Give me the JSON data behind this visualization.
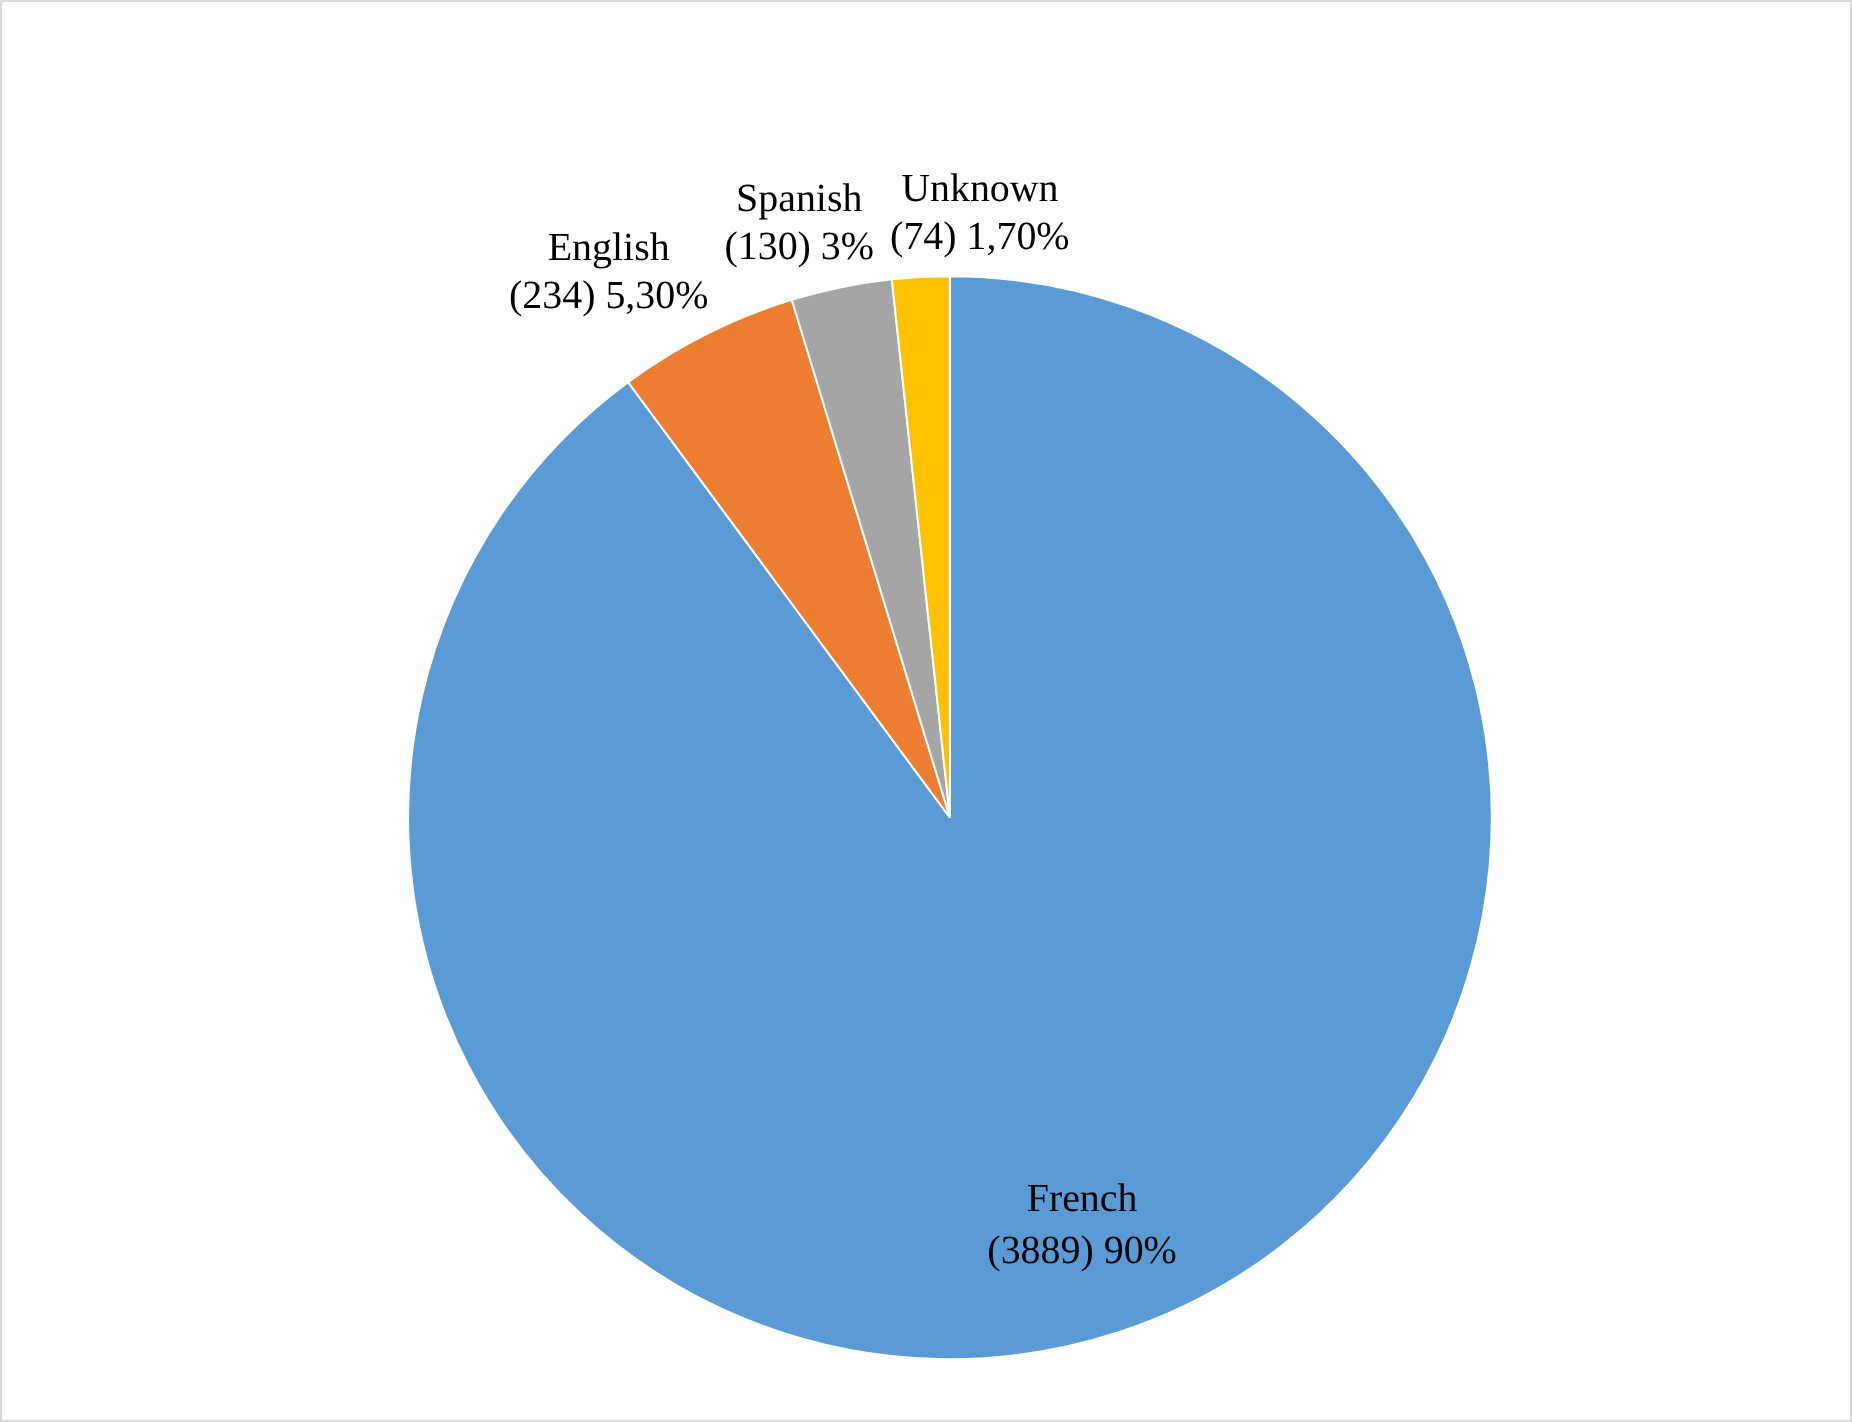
{
  "chart_data": {
    "type": "pie",
    "categories": [
      "French",
      "English",
      "Spanish",
      "Unknown"
    ],
    "values": [
      3889,
      234,
      130,
      74
    ],
    "colors": [
      "#5b9bd5",
      "#ed7d31",
      "#a5a5a5",
      "#ffc000"
    ],
    "value_labels": [
      "(3889) 90%",
      "(234) 5,30%",
      "(130) 3%",
      "(74) 1,70%"
    ],
    "legend": false
  }
}
